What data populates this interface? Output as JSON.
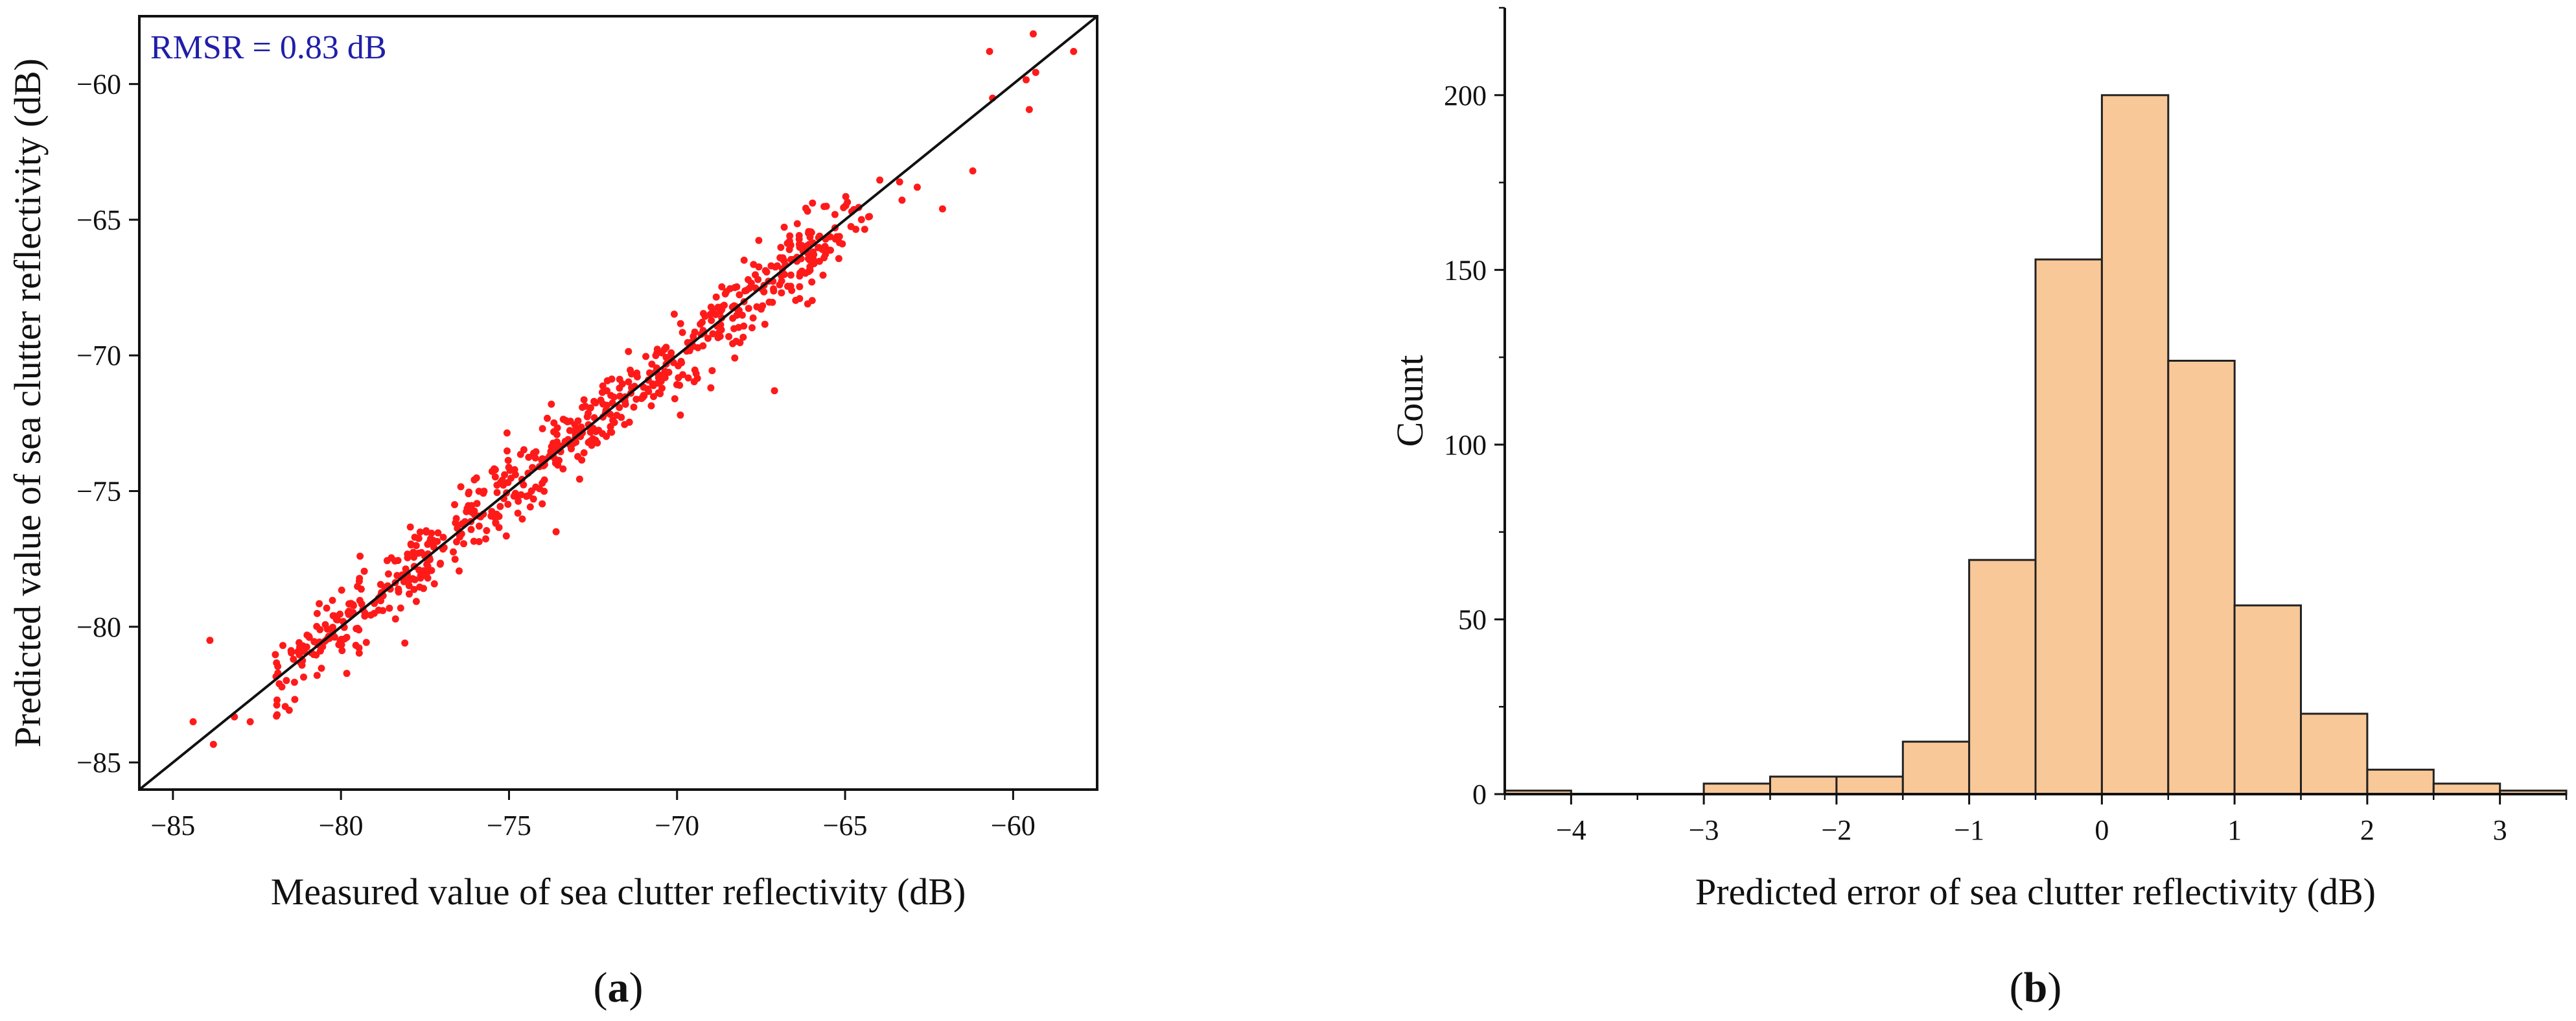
{
  "chart_data": [
    {
      "type": "scatter",
      "panel": "(a)",
      "panel_letter": "a",
      "xlabel": "Measured value of sea clutter reflectivity (dB)",
      "ylabel": "Predicted  value of sea clutter reflectivity (dB)",
      "xlim": [
        -86,
        -57.5
      ],
      "ylim": [
        -86,
        -57.5
      ],
      "xticks": [
        -85,
        -80,
        -75,
        -70,
        -65,
        -60
      ],
      "yticks": [
        -85,
        -80,
        -75,
        -70,
        -65,
        -60
      ],
      "xtick_labels": [
        "−85",
        "−80",
        "−75",
        "−70",
        "−65",
        "−60"
      ],
      "ytick_labels": [
        "−85",
        "−80",
        "−75",
        "−70",
        "−65",
        "−60"
      ],
      "annotation": "RMSR = 0.83 dB",
      "reference_line": "y = x",
      "point_color": "#ff1a1a",
      "approx_point_count": 700,
      "point_sigma_db": 0.83,
      "x_range_of_points": [
        -84.5,
        -58.2
      ],
      "sample_points": [
        {
          "x": -84.4,
          "y": -83.5
        },
        {
          "x": -83.9,
          "y": -80.5
        },
        {
          "x": -82.7,
          "y": -83.5
        },
        {
          "x": -80.2,
          "y": -79.6
        },
        {
          "x": -78.1,
          "y": -80.6
        },
        {
          "x": -75.2,
          "y": -74.6
        },
        {
          "x": -73.6,
          "y": -76.5
        },
        {
          "x": -69.9,
          "y": -72.2
        },
        {
          "x": -67.1,
          "y": -71.3
        },
        {
          "x": -65.3,
          "y": -65.3
        },
        {
          "x": -62.1,
          "y": -64.6
        },
        {
          "x": -61.2,
          "y": -63.2
        },
        {
          "x": -60.7,
          "y": -58.8
        },
        {
          "x": -58.2,
          "y": -58.8
        }
      ]
    },
    {
      "type": "bar",
      "subtype": "histogram",
      "panel": "(b)",
      "panel_letter": "b",
      "xlabel": "Predicted error of sea clutter reflectivity (dB)",
      "ylabel": "Count",
      "xlim": [
        -4.5,
        3.5
      ],
      "ylim": [
        0,
        225
      ],
      "xticks": [
        -4,
        -3,
        -2,
        -1,
        0,
        1,
        2,
        3
      ],
      "xtick_labels": [
        "−4",
        "−3",
        "−2",
        "−1",
        "0",
        "1",
        "2",
        "3"
      ],
      "yticks": [
        0,
        50,
        100,
        150,
        200
      ],
      "ytick_labels": [
        "0",
        "50",
        "100",
        "150",
        "200"
      ],
      "bin_edges": [
        -4.5,
        -4.0,
        -3.5,
        -3.0,
        -2.5,
        -2.0,
        -1.5,
        -1.0,
        -0.5,
        0.0,
        0.5,
        1.0,
        1.5,
        2.0,
        2.5,
        3.0,
        3.5
      ],
      "values": [
        1,
        0,
        0,
        3,
        5,
        5,
        15,
        67,
        153,
        200,
        124,
        54,
        23,
        7,
        3,
        1
      ],
      "bar_color": "#f9c898",
      "edge_color": "#222222"
    }
  ]
}
